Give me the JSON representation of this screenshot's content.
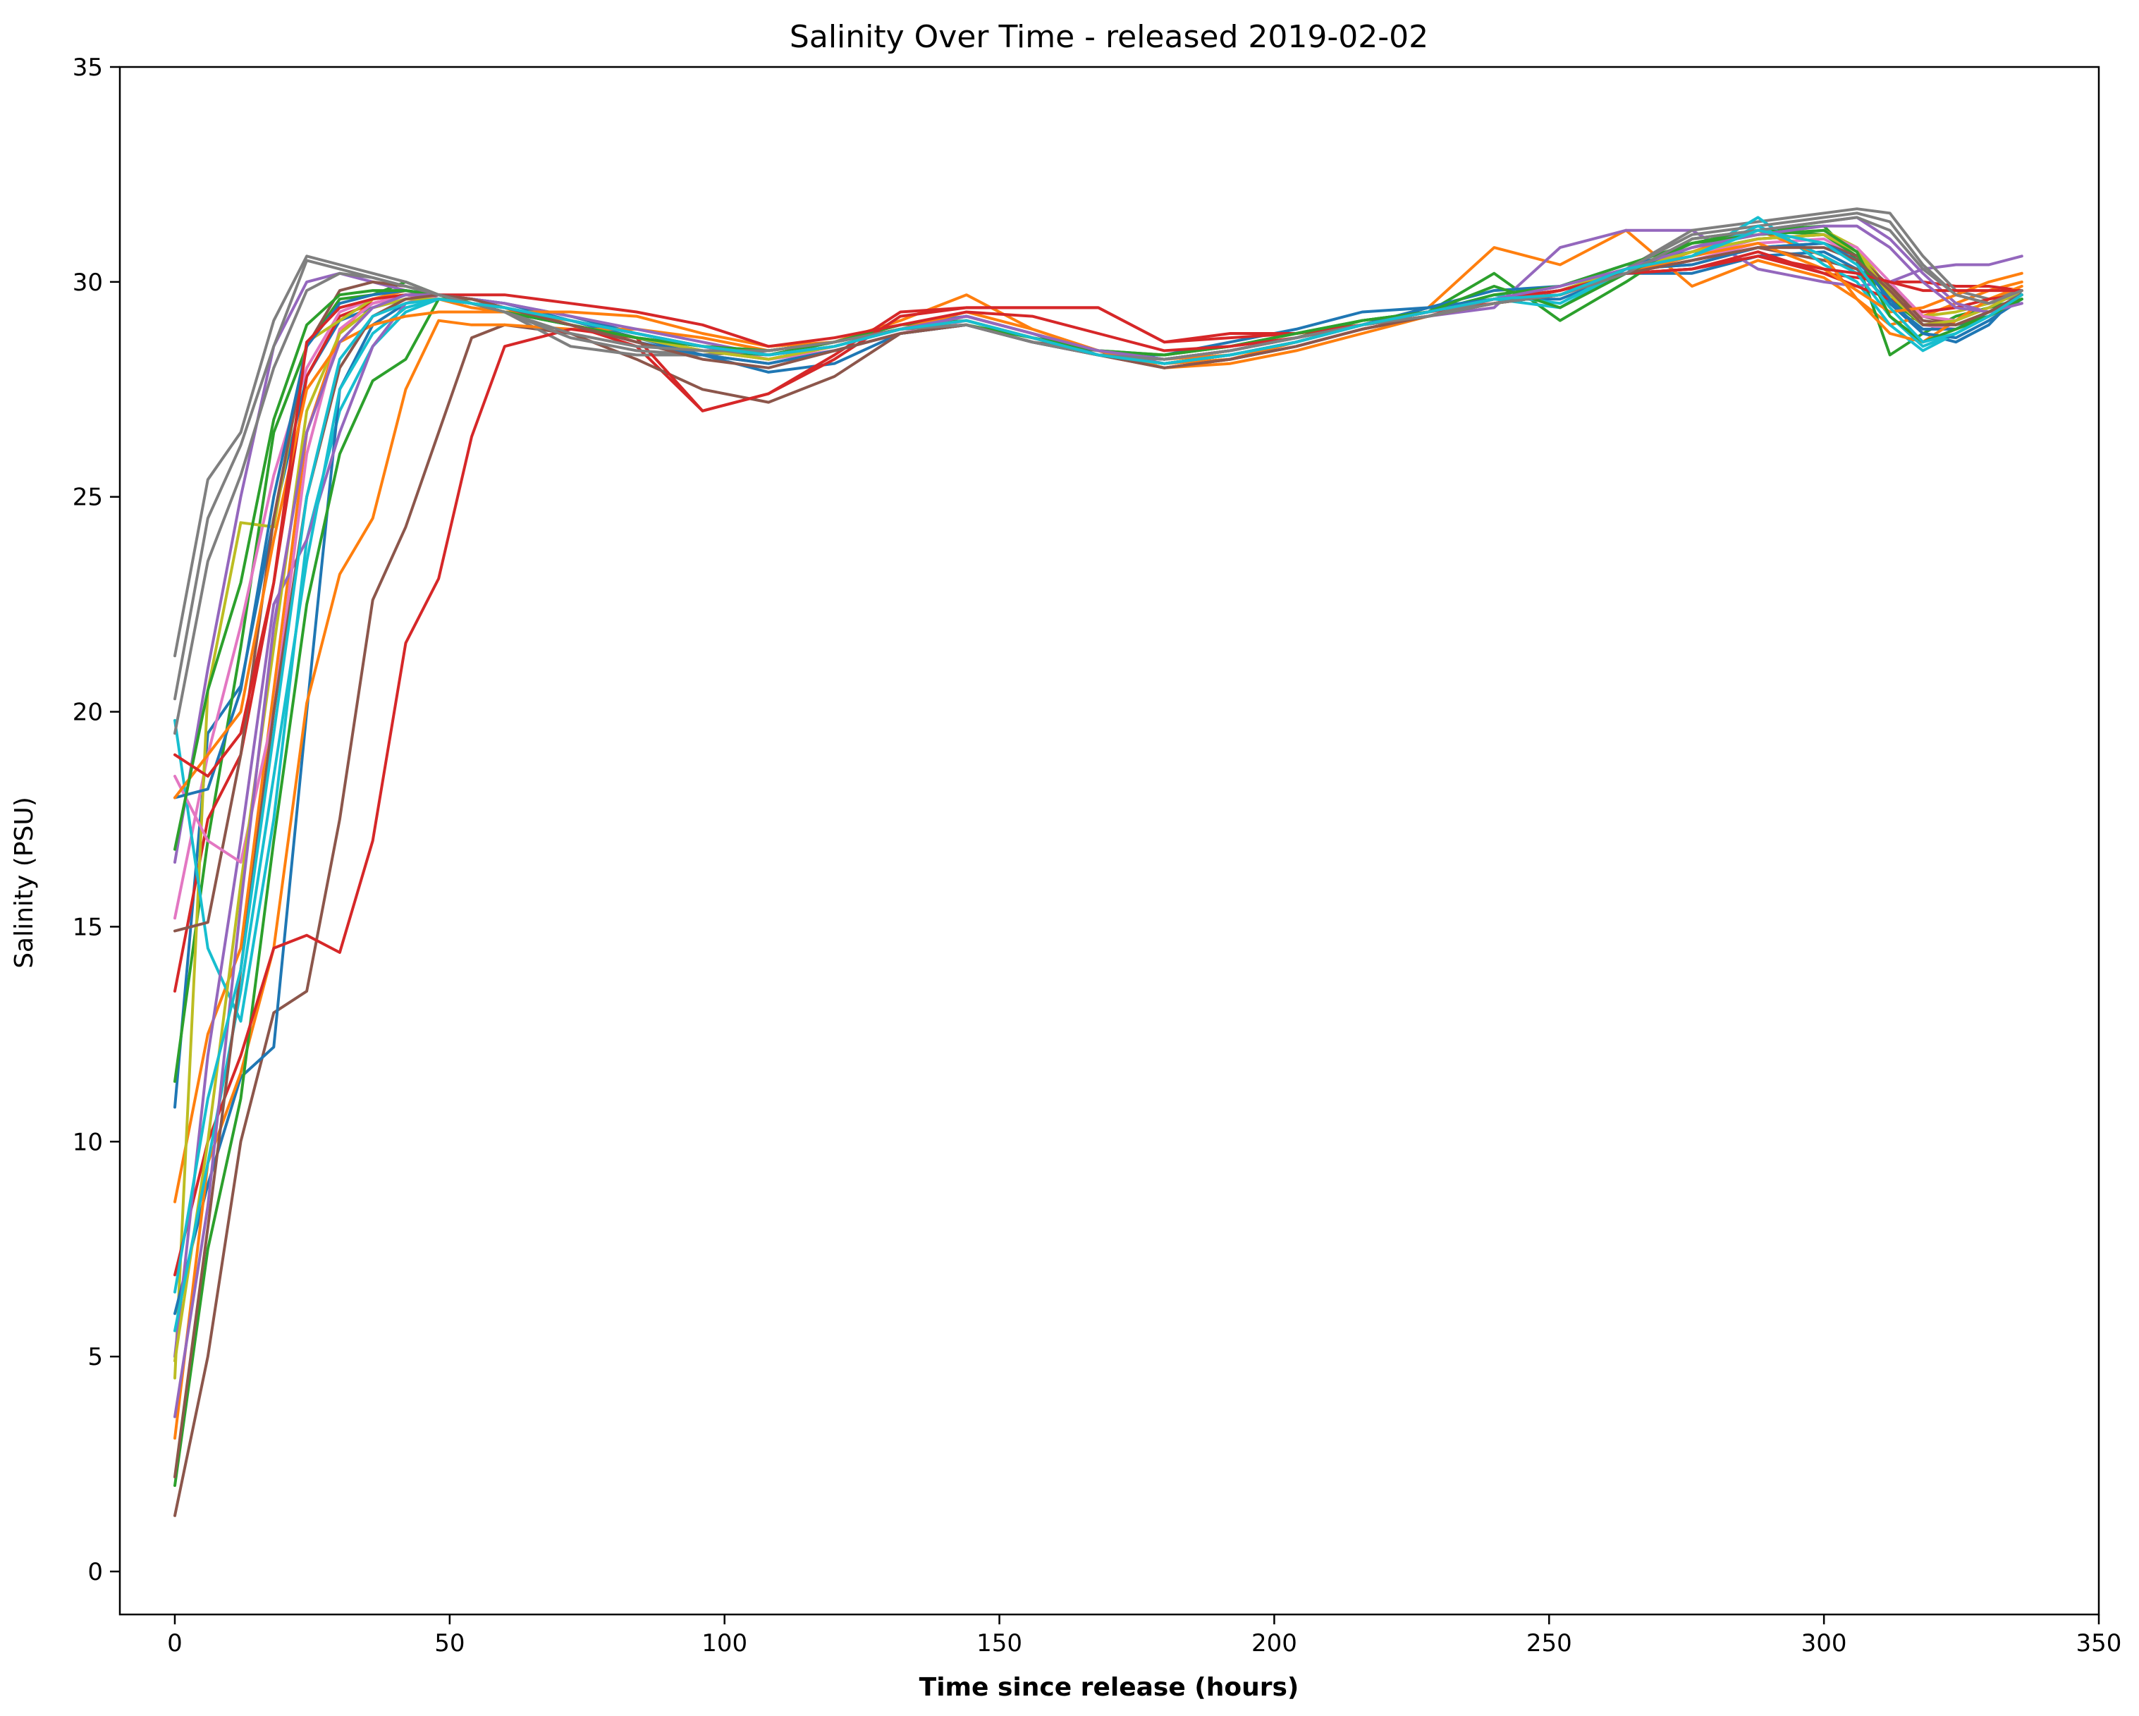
{
  "chart_data": {
    "type": "line",
    "title": "Salinity Over Time - released 2019-02-02",
    "xlabel": "Time since release (hours)",
    "ylabel": "Salinity (PSU)",
    "xlim": [
      -10,
      350
    ],
    "ylim": [
      -1,
      35
    ],
    "xticks": [
      0,
      50,
      100,
      150,
      200,
      250,
      300,
      350
    ],
    "yticks": [
      0,
      5,
      10,
      15,
      20,
      25,
      30,
      35
    ],
    "grid": false,
    "legend": "none",
    "x": [
      0,
      6,
      12,
      18,
      24,
      30,
      36,
      42,
      48,
      54,
      60,
      72,
      84,
      96,
      108,
      120,
      132,
      144,
      156,
      168,
      180,
      192,
      204,
      216,
      228,
      240,
      252,
      264,
      276,
      288,
      300,
      306,
      312,
      318,
      324,
      330,
      336
    ],
    "series": [
      {
        "color": "#1f77b4",
        "values": [
          10.8,
          19.5,
          20.6,
          24.5,
          27.8,
          29.1,
          29.4,
          29.6,
          29.7,
          29.6,
          29.5,
          29.1,
          28.7,
          28.3,
          27.9,
          28.1,
          28.8,
          29.0,
          28.6,
          28.3,
          28.3,
          28.6,
          28.9,
          29.3,
          29.4,
          29.6,
          29.6,
          30.2,
          30.2,
          30.6,
          30.7,
          30.3,
          29.5,
          28.8,
          28.6,
          29.0,
          29.8
        ]
      },
      {
        "color": "#ff7f0e",
        "values": [
          8.6,
          12.5,
          14.5,
          20.5,
          26.5,
          28.8,
          29.6,
          29.8,
          29.6,
          29.4,
          29.3,
          29.1,
          28.8,
          28.5,
          28.3,
          28.6,
          29.1,
          29.7,
          28.9,
          28.4,
          28.1,
          28.2,
          28.6,
          29.0,
          29.4,
          30.8,
          30.4,
          31.2,
          29.9,
          30.5,
          30.1,
          29.6,
          29.0,
          29.2,
          29.5,
          29.8,
          30.0
        ]
      },
      {
        "color": "#2ca02c",
        "values": [
          11.4,
          17.0,
          21.5,
          26.5,
          28.5,
          29.6,
          29.7,
          30.0,
          29.7,
          29.5,
          29.3,
          29.0,
          28.7,
          28.5,
          28.4,
          28.6,
          28.9,
          29.1,
          28.7,
          28.4,
          28.3,
          28.5,
          28.8,
          29.1,
          29.3,
          30.2,
          29.1,
          30.0,
          31.0,
          31.2,
          31.3,
          30.5,
          28.3,
          28.8,
          29.2,
          29.4,
          29.6
        ]
      },
      {
        "color": "#d62728",
        "values": [
          13.5,
          17.5,
          19.0,
          23.0,
          27.8,
          29.2,
          29.5,
          29.7,
          29.6,
          29.5,
          29.4,
          29.0,
          28.5,
          27.0,
          27.4,
          28.3,
          29.3,
          29.4,
          29.4,
          29.4,
          28.6,
          28.8,
          28.8,
          29.0,
          29.3,
          29.5,
          29.8,
          30.2,
          30.3,
          30.6,
          30.2,
          30.1,
          30.0,
          30.0,
          29.9,
          29.9,
          29.8
        ]
      },
      {
        "color": "#9467bd",
        "values": [
          16.5,
          21.0,
          25.0,
          28.5,
          30.0,
          30.2,
          30.0,
          29.8,
          29.6,
          29.5,
          29.4,
          29.1,
          28.8,
          28.5,
          28.2,
          28.5,
          28.9,
          29.2,
          28.8,
          28.4,
          28.1,
          28.3,
          28.6,
          29.0,
          29.2,
          29.4,
          30.8,
          31.2,
          31.2,
          30.3,
          30.0,
          29.9,
          30.0,
          30.3,
          30.4,
          30.4,
          30.6
        ]
      },
      {
        "color": "#8c564b",
        "values": [
          1.3,
          5.0,
          10.0,
          13.0,
          13.5,
          17.5,
          22.6,
          24.3,
          26.5,
          28.7,
          29.0,
          28.8,
          28.2,
          27.5,
          27.2,
          27.8,
          28.8,
          29.0,
          28.6,
          28.4,
          28.0,
          28.2,
          28.5,
          28.9,
          29.2,
          29.5,
          29.7,
          30.3,
          30.4,
          30.8,
          30.5,
          30.3,
          29.9,
          29.2,
          29.0,
          29.3,
          29.6
        ]
      },
      {
        "color": "#e377c2",
        "values": [
          15.2,
          19.0,
          22.0,
          25.5,
          28.0,
          29.3,
          29.6,
          29.7,
          29.6,
          29.5,
          29.4,
          29.1,
          28.8,
          28.5,
          28.2,
          28.4,
          28.8,
          29.1,
          28.7,
          28.3,
          28.1,
          28.3,
          28.6,
          29.0,
          29.3,
          29.6,
          29.7,
          30.2,
          30.5,
          30.9,
          31.0,
          30.6,
          29.8,
          29.0,
          28.9,
          29.2,
          29.7
        ]
      },
      {
        "color": "#7f7f7f",
        "values": [
          21.3,
          25.4,
          26.5,
          29.1,
          30.6,
          30.4,
          30.2,
          30.0,
          29.7,
          29.5,
          29.3,
          28.5,
          28.3,
          28.3,
          28.4,
          28.6,
          28.9,
          29.0,
          28.6,
          28.3,
          28.2,
          28.4,
          28.7,
          29.0,
          29.2,
          29.6,
          29.8,
          30.3,
          31.2,
          31.4,
          31.6,
          31.7,
          31.6,
          30.6,
          29.8,
          29.6,
          29.8
        ]
      },
      {
        "color": "#bcbd22",
        "values": [
          4.5,
          20.5,
          24.4,
          24.3,
          28.6,
          29.1,
          29.6,
          29.7,
          29.6,
          29.5,
          29.3,
          29.0,
          28.7,
          28.4,
          28.2,
          28.5,
          28.9,
          29.2,
          28.8,
          28.4,
          28.2,
          28.4,
          28.7,
          29.0,
          29.3,
          29.6,
          29.8,
          30.3,
          30.8,
          31.1,
          31.2,
          30.8,
          29.8,
          29.2,
          29.3,
          29.5,
          29.8
        ]
      },
      {
        "color": "#17becf",
        "values": [
          19.8,
          14.5,
          12.8,
          17.5,
          24.0,
          27.0,
          28.5,
          29.3,
          29.6,
          29.5,
          29.3,
          29.0,
          28.7,
          28.4,
          28.3,
          28.5,
          28.9,
          29.1,
          28.7,
          28.3,
          28.1,
          28.3,
          28.6,
          29.0,
          29.3,
          29.7,
          29.5,
          30.3,
          30.6,
          31.5,
          30.4,
          30.0,
          29.0,
          28.4,
          28.8,
          29.2,
          29.6
        ]
      },
      {
        "color": "#1f77b4",
        "values": [
          6.0,
          9.0,
          11.5,
          12.2,
          20.0,
          27.5,
          29.0,
          29.5,
          29.7,
          29.6,
          29.5,
          29.2,
          28.8,
          28.5,
          28.3,
          28.6,
          29.0,
          29.2,
          28.8,
          28.3,
          28.1,
          28.3,
          28.6,
          29.0,
          29.4,
          29.8,
          29.9,
          30.4,
          30.7,
          31.0,
          31.1,
          30.7,
          29.5,
          28.9,
          28.9,
          29.3,
          29.7
        ]
      },
      {
        "color": "#ff7f0e",
        "values": [
          3.1,
          9.5,
          11.6,
          14.5,
          20.2,
          23.2,
          24.5,
          27.5,
          29.1,
          29.0,
          29.0,
          28.9,
          28.9,
          28.7,
          28.4,
          28.6,
          28.9,
          29.1,
          28.7,
          28.4,
          28.2,
          28.3,
          28.6,
          29.0,
          29.2,
          29.5,
          29.7,
          30.2,
          30.7,
          31.2,
          30.6,
          29.6,
          28.8,
          28.6,
          29.1,
          29.6,
          29.9
        ]
      },
      {
        "color": "#2ca02c",
        "values": [
          2.0,
          7.5,
          11.0,
          17.0,
          22.5,
          26.0,
          27.7,
          28.2,
          29.6,
          29.6,
          29.4,
          29.0,
          28.7,
          28.4,
          28.3,
          28.6,
          29.0,
          29.1,
          28.7,
          28.3,
          28.2,
          28.4,
          28.7,
          29.1,
          29.3,
          29.7,
          29.9,
          30.4,
          30.9,
          31.2,
          31.1,
          30.6,
          29.6,
          29.0,
          29.0,
          29.2,
          29.6
        ]
      },
      {
        "color": "#d62728",
        "values": [
          6.9,
          10.0,
          12.0,
          14.5,
          14.8,
          14.4,
          17.0,
          21.6,
          23.1,
          26.4,
          28.5,
          28.9,
          28.7,
          27.0,
          27.4,
          28.2,
          29.2,
          29.4,
          29.4,
          29.4,
          28.6,
          28.7,
          28.8,
          29.0,
          29.3,
          29.6,
          29.8,
          30.2,
          30.3,
          30.7,
          30.2,
          29.9,
          29.6,
          29.3,
          29.4,
          29.6,
          29.7
        ]
      },
      {
        "color": "#9467bd",
        "values": [
          5.0,
          12.0,
          17.0,
          22.5,
          24.0,
          26.5,
          28.5,
          29.5,
          29.7,
          29.6,
          29.5,
          29.2,
          28.9,
          28.6,
          28.3,
          28.5,
          28.9,
          29.2,
          28.8,
          28.4,
          28.2,
          28.4,
          28.7,
          29.0,
          29.3,
          29.6,
          29.9,
          30.3,
          30.8,
          31.2,
          31.4,
          31.5,
          31.0,
          30.2,
          29.5,
          29.3,
          29.5
        ]
      },
      {
        "color": "#8c564b",
        "values": [
          14.9,
          15.1,
          19.0,
          24.5,
          28.5,
          29.8,
          30.0,
          29.9,
          29.7,
          29.5,
          29.3,
          29.0,
          28.6,
          28.3,
          28.1,
          28.4,
          28.8,
          29.0,
          28.6,
          28.3,
          28.0,
          28.2,
          28.5,
          28.9,
          29.2,
          29.5,
          29.7,
          30.2,
          30.5,
          30.8,
          30.9,
          30.6,
          29.9,
          29.1,
          29.0,
          29.3,
          29.7
        ]
      },
      {
        "color": "#e377c2",
        "values": [
          18.5,
          17.0,
          16.5,
          20.0,
          26.0,
          28.9,
          29.5,
          29.7,
          29.6,
          29.5,
          29.3,
          29.0,
          28.7,
          28.4,
          28.2,
          28.5,
          28.9,
          29.1,
          28.7,
          28.3,
          28.1,
          28.3,
          28.6,
          29.0,
          29.3,
          29.6,
          29.8,
          30.3,
          30.6,
          31.0,
          31.1,
          30.8,
          30.0,
          29.2,
          29.1,
          29.4,
          29.8
        ]
      },
      {
        "color": "#7f7f7f",
        "values": [
          20.3,
          24.5,
          26.2,
          28.5,
          30.5,
          30.3,
          30.1,
          29.9,
          29.7,
          29.5,
          29.3,
          28.7,
          28.4,
          28.3,
          28.4,
          28.6,
          28.9,
          29.0,
          28.6,
          28.3,
          28.2,
          28.4,
          28.7,
          29.0,
          29.2,
          29.6,
          29.8,
          30.3,
          31.1,
          31.3,
          31.5,
          31.6,
          31.4,
          30.4,
          29.7,
          29.5,
          29.7
        ]
      },
      {
        "color": "#bcbd22",
        "values": [
          4.9,
          10.0,
          16.0,
          21.5,
          27.0,
          28.8,
          29.4,
          29.6,
          29.6,
          29.5,
          29.3,
          29.0,
          28.7,
          28.4,
          28.2,
          28.5,
          28.9,
          29.1,
          28.7,
          28.3,
          28.1,
          28.3,
          28.6,
          29.0,
          29.3,
          29.6,
          29.8,
          30.3,
          30.7,
          31.0,
          31.1,
          30.7,
          29.7,
          29.0,
          29.1,
          29.4,
          29.8
        ]
      },
      {
        "color": "#17becf",
        "values": [
          5.6,
          9.5,
          13.5,
          18.5,
          23.5,
          27.5,
          28.8,
          29.4,
          29.6,
          29.5,
          29.4,
          29.1,
          28.8,
          28.5,
          28.3,
          28.5,
          28.9,
          29.1,
          28.7,
          28.3,
          28.1,
          28.3,
          28.6,
          29.0,
          29.3,
          29.6,
          29.4,
          30.3,
          30.6,
          31.3,
          30.6,
          30.2,
          29.2,
          28.5,
          28.8,
          29.2,
          29.7
        ]
      },
      {
        "color": "#1f77b4",
        "values": [
          18.0,
          18.2,
          20.5,
          25.0,
          28.5,
          29.5,
          29.7,
          29.8,
          29.7,
          29.5,
          29.3,
          29.0,
          28.6,
          28.3,
          28.1,
          28.4,
          28.8,
          29.0,
          28.6,
          28.3,
          28.1,
          28.3,
          28.6,
          29.0,
          29.4,
          29.6,
          29.7,
          30.3,
          30.4,
          30.8,
          30.9,
          30.5,
          29.6,
          28.8,
          28.7,
          29.1,
          29.6
        ]
      },
      {
        "color": "#ff7f0e",
        "values": [
          18.0,
          19.0,
          20.0,
          24.0,
          27.5,
          28.6,
          29.0,
          29.2,
          29.3,
          29.3,
          29.3,
          29.3,
          29.2,
          28.8,
          28.5,
          28.6,
          28.9,
          29.3,
          28.9,
          28.4,
          28.0,
          28.1,
          28.4,
          28.8,
          29.2,
          29.5,
          29.7,
          30.2,
          30.6,
          30.9,
          30.3,
          29.8,
          29.3,
          29.4,
          29.7,
          30.0,
          30.2
        ]
      },
      {
        "color": "#2ca02c",
        "values": [
          16.8,
          20.5,
          23.0,
          26.8,
          29.0,
          29.7,
          29.8,
          29.8,
          29.7,
          29.5,
          29.3,
          29.0,
          28.7,
          28.5,
          28.4,
          28.6,
          28.9,
          29.0,
          28.7,
          28.4,
          28.3,
          28.5,
          28.8,
          29.1,
          29.3,
          29.9,
          29.4,
          30.2,
          30.9,
          31.1,
          31.2,
          30.7,
          29.2,
          28.6,
          28.9,
          29.2,
          29.6
        ]
      },
      {
        "color": "#d62728",
        "values": [
          19.0,
          18.5,
          19.5,
          23.0,
          28.6,
          29.4,
          29.6,
          29.7,
          29.7,
          29.7,
          29.7,
          29.5,
          29.3,
          29.0,
          28.5,
          28.7,
          29.0,
          29.3,
          29.2,
          28.8,
          28.4,
          28.5,
          28.7,
          29.0,
          29.3,
          29.6,
          29.8,
          30.2,
          30.3,
          30.6,
          30.3,
          30.2,
          30.0,
          29.8,
          29.8,
          29.8,
          29.8
        ]
      },
      {
        "color": "#9467bd",
        "values": [
          3.6,
          8.5,
          15.5,
          22.0,
          26.5,
          28.6,
          29.4,
          29.7,
          29.7,
          29.6,
          29.4,
          29.1,
          28.8,
          28.5,
          28.3,
          28.5,
          28.9,
          29.2,
          28.8,
          28.4,
          28.2,
          28.4,
          28.7,
          29.0,
          29.3,
          29.6,
          29.9,
          30.3,
          30.8,
          31.1,
          31.3,
          31.3,
          30.8,
          30.0,
          29.4,
          29.3,
          29.5
        ]
      },
      {
        "color": "#8c564b",
        "values": [
          2.2,
          8.0,
          14.0,
          20.0,
          25.0,
          28.0,
          29.2,
          29.6,
          29.7,
          29.6,
          29.4,
          29.0,
          28.6,
          28.2,
          28.0,
          28.4,
          28.8,
          29.0,
          28.6,
          28.3,
          28.0,
          28.2,
          28.5,
          28.9,
          29.2,
          29.5,
          29.7,
          30.2,
          30.5,
          30.8,
          30.8,
          30.5,
          29.8,
          29.0,
          29.0,
          29.3,
          29.7
        ]
      },
      {
        "color": "#7f7f7f",
        "values": [
          19.5,
          23.5,
          25.5,
          28.0,
          29.8,
          30.2,
          30.1,
          29.9,
          29.7,
          29.5,
          29.3,
          28.8,
          28.5,
          28.4,
          28.4,
          28.6,
          28.9,
          29.0,
          28.6,
          28.3,
          28.2,
          28.4,
          28.7,
          29.0,
          29.2,
          29.5,
          29.7,
          30.2,
          31.0,
          31.2,
          31.4,
          31.5,
          31.2,
          30.3,
          29.7,
          29.5,
          29.8
        ]
      },
      {
        "color": "#17becf",
        "values": [
          6.5,
          11.0,
          14.0,
          19.5,
          25.0,
          28.2,
          29.2,
          29.5,
          29.6,
          29.5,
          29.4,
          29.1,
          28.8,
          28.5,
          28.3,
          28.5,
          28.9,
          29.1,
          28.7,
          28.3,
          28.1,
          28.3,
          28.6,
          29.0,
          29.3,
          29.6,
          29.7,
          30.3,
          30.6,
          31.2,
          30.9,
          30.4,
          29.4,
          28.6,
          28.8,
          29.2,
          29.7
        ]
      }
    ]
  }
}
